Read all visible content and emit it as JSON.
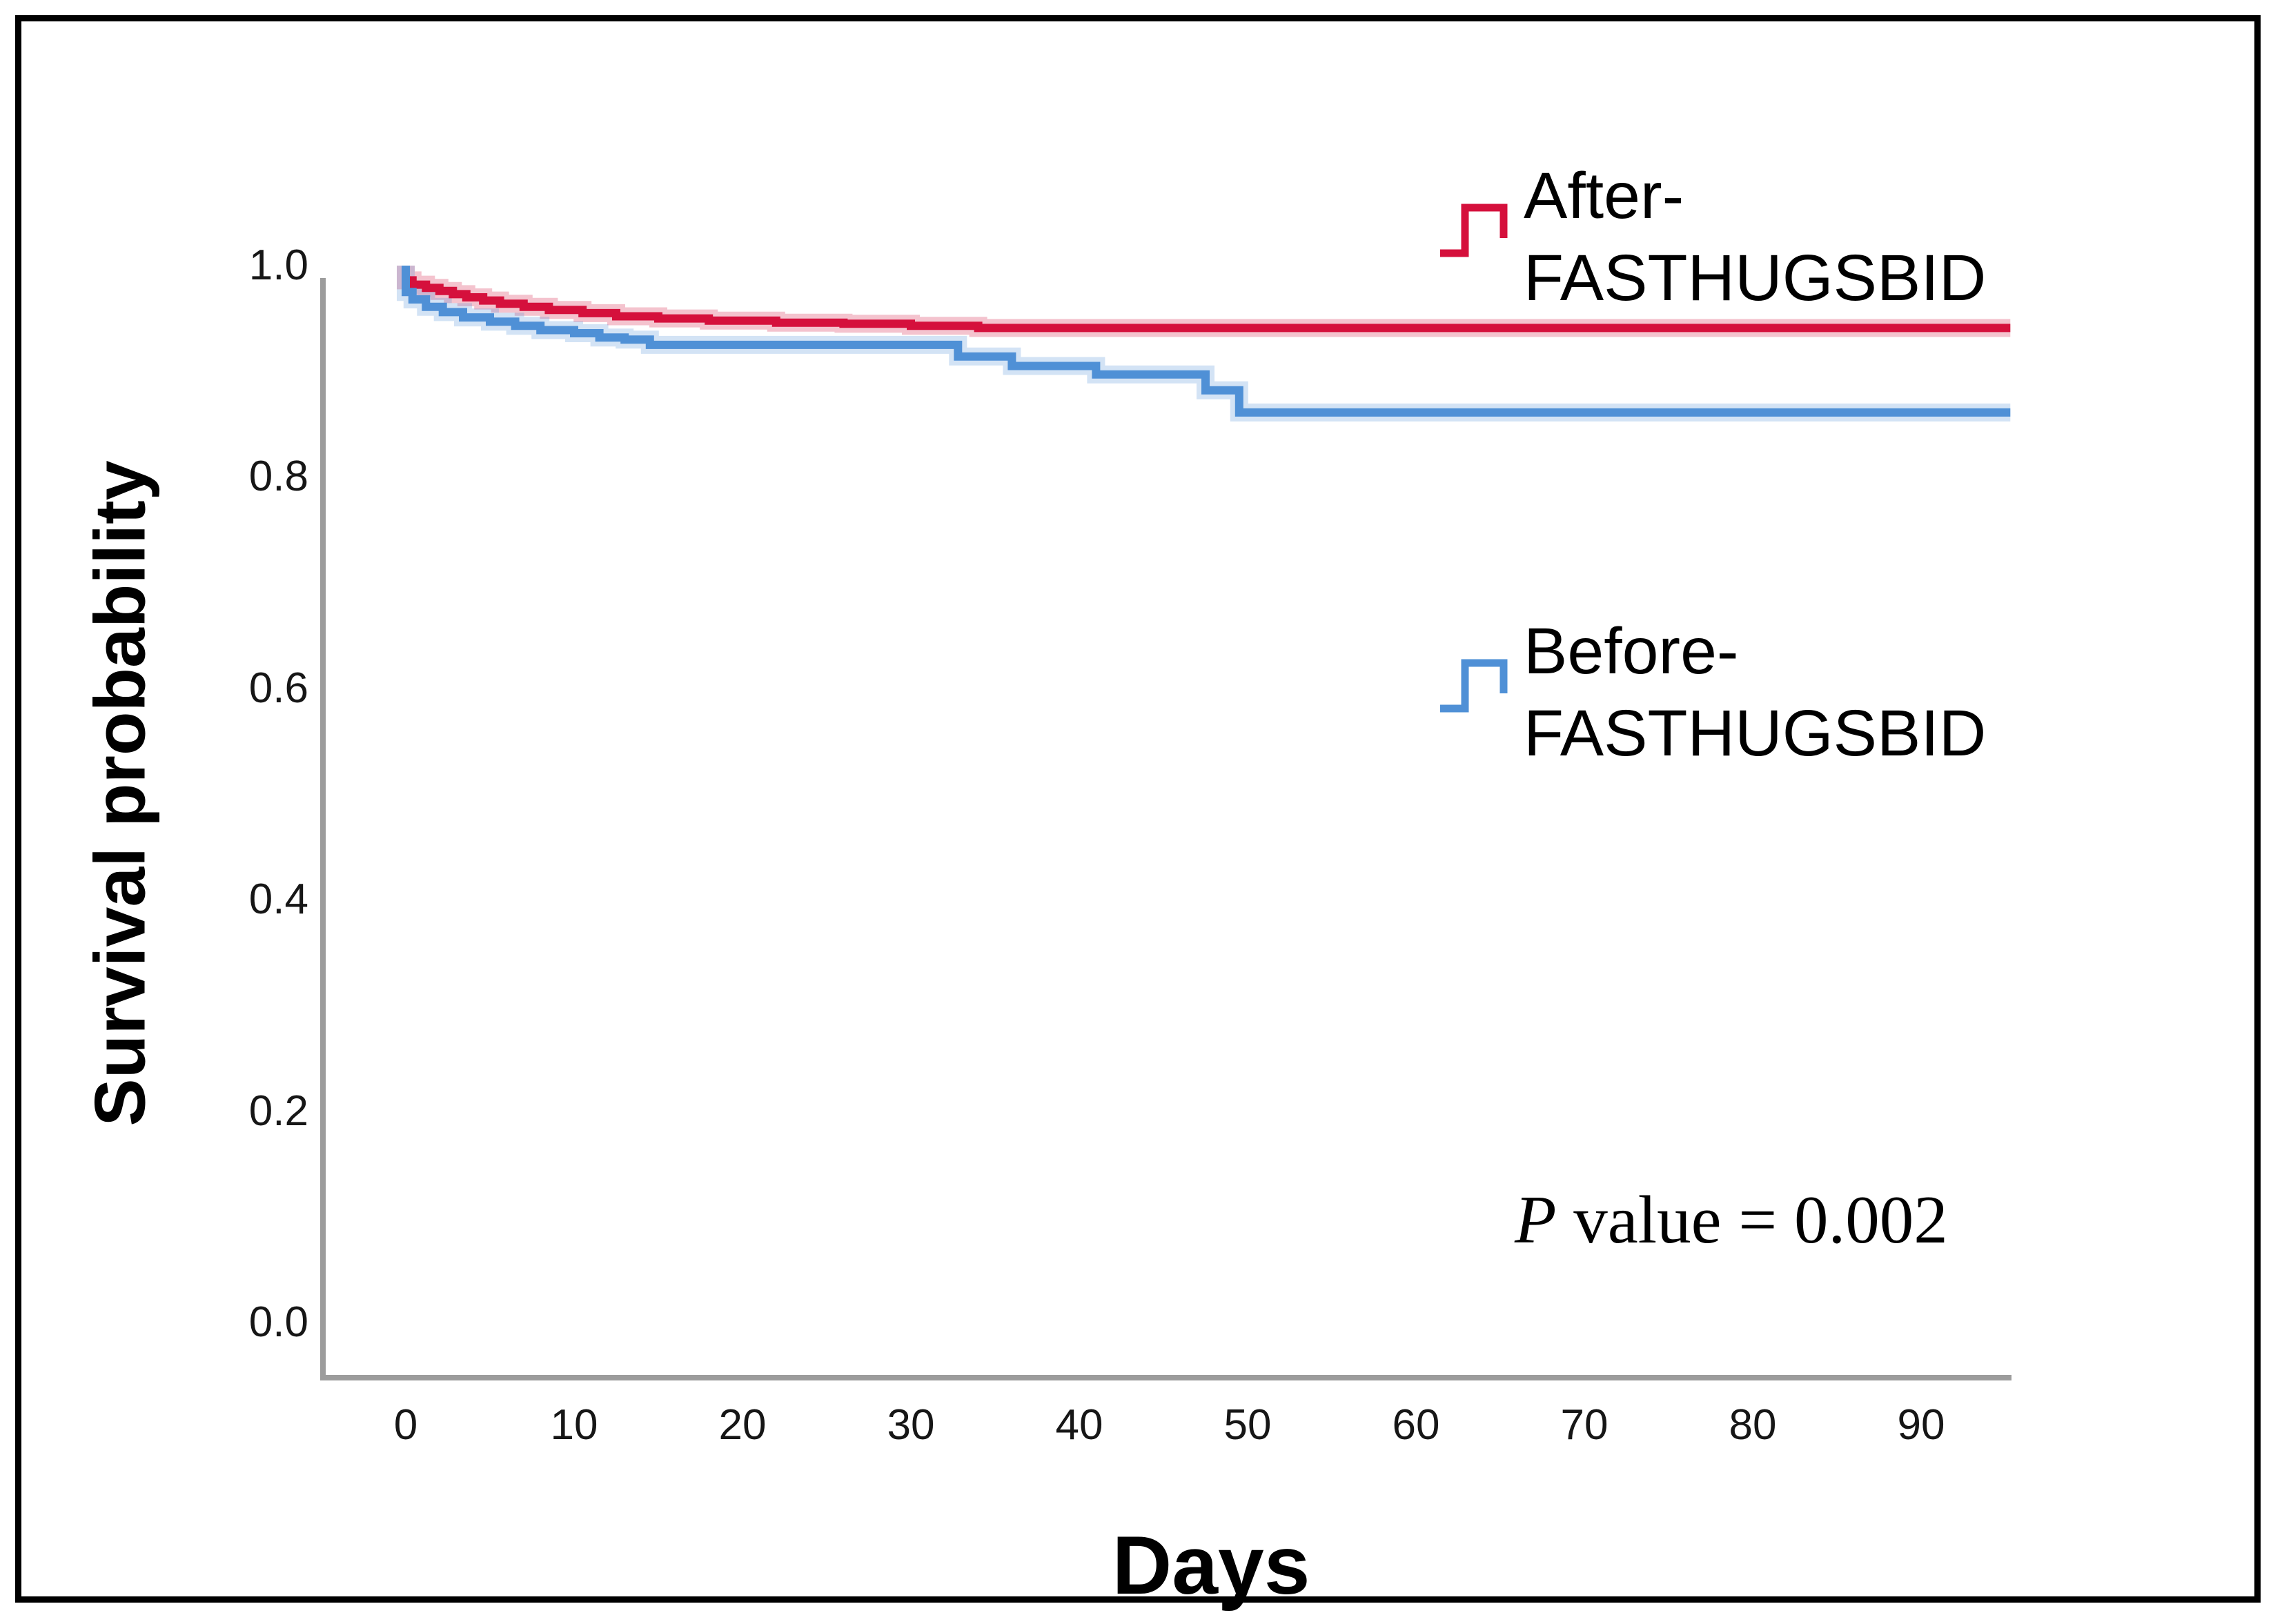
{
  "y_axis": {
    "label": "Survival probability",
    "tick_labels": [
      "1.0",
      "0.8",
      "0.6",
      "0.4",
      "0.2",
      "0.0"
    ]
  },
  "x_axis": {
    "label": "Days",
    "tick_labels": [
      "0",
      "10",
      "20",
      "30",
      "40",
      "50",
      "60",
      "70",
      "80",
      "90"
    ]
  },
  "legend": {
    "items": [
      {
        "label_line1": "After-",
        "label_line2": "FASTHUGSBID",
        "color": "#d5103c"
      },
      {
        "label_line1": "Before-",
        "label_line2": "FASTHUGSBID",
        "color": "#4f90d6"
      }
    ]
  },
  "annotation": {
    "p_symbol": "P",
    "text": " value = 0.002"
  },
  "colors": {
    "axis_line": "#9c9c9c",
    "frame_border": "#000000",
    "background": "#ffffff"
  },
  "chart_data": {
    "type": "line",
    "subtype": "kaplan-meier-step",
    "title": "",
    "xlabel": "Days",
    "ylabel": "Survival probability",
    "xlim": [
      -5,
      96
    ],
    "ylim": [
      0.0,
      1.05
    ],
    "x_ticks": [
      0,
      10,
      20,
      30,
      40,
      50,
      60,
      70,
      80,
      90
    ],
    "y_ticks": [
      1.0,
      0.8,
      0.6,
      0.4,
      0.2,
      0.0
    ],
    "grid": false,
    "legend_position": "inside-right",
    "annotation": "P value = 0.002",
    "series": [
      {
        "name": "After-FASTHUGSBID",
        "color": "#d5103c",
        "final_value": 0.94,
        "steps": [
          [
            0,
            1.0
          ],
          [
            0.4,
            0.986
          ],
          [
            1.2,
            0.982
          ],
          [
            2,
            0.979
          ],
          [
            2.8,
            0.976
          ],
          [
            3.6,
            0.973
          ],
          [
            4.6,
            0.97
          ],
          [
            5.6,
            0.967
          ],
          [
            7,
            0.964
          ],
          [
            8.5,
            0.961
          ],
          [
            10.5,
            0.958
          ],
          [
            12.5,
            0.955
          ],
          [
            15,
            0.952
          ],
          [
            18,
            0.95
          ],
          [
            22,
            0.948
          ],
          [
            26,
            0.946
          ],
          [
            30,
            0.945
          ],
          [
            34,
            0.943
          ],
          [
            36,
            0.941
          ],
          [
            95.3,
            0.941
          ]
        ]
      },
      {
        "name": "Before-FASTHUGSBID",
        "color": "#4f90d6",
        "final_value": 0.86,
        "steps": [
          [
            0,
            1.0
          ],
          [
            0.4,
            0.975
          ],
          [
            1.2,
            0.968
          ],
          [
            2.2,
            0.961
          ],
          [
            3.4,
            0.956
          ],
          [
            5,
            0.951
          ],
          [
            6.5,
            0.947
          ],
          [
            8,
            0.943
          ],
          [
            10,
            0.939
          ],
          [
            11.5,
            0.936
          ],
          [
            13,
            0.932
          ],
          [
            14.5,
            0.93
          ],
          [
            32.8,
            0.925
          ],
          [
            36,
            0.914
          ],
          [
            41,
            0.905
          ],
          [
            47.5,
            0.897
          ],
          [
            49.5,
            0.882
          ],
          [
            52,
            0.861
          ],
          [
            95.3,
            0.861
          ]
        ]
      }
    ]
  }
}
